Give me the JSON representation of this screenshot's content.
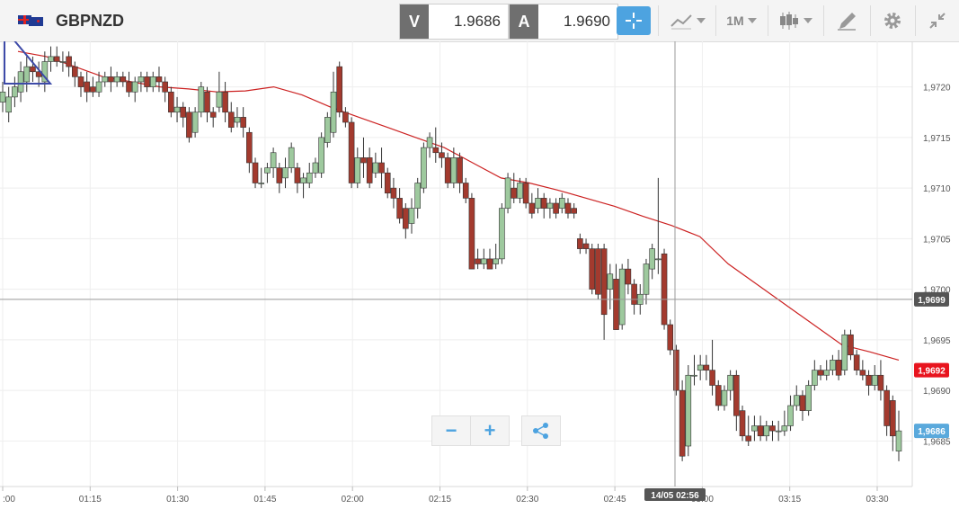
{
  "toolbar": {
    "symbol": "GBPNZD",
    "bid_label": "V",
    "bid_value": "1.9686",
    "ask_label": "A",
    "ask_value": "1.9690",
    "timeframe": "1M",
    "icons": [
      "crosshair-icon",
      "indicator-icon",
      "candlestick-icon",
      "drawing-tool-icon",
      "gear-icon",
      "collapse-icon"
    ]
  },
  "chart_data": {
    "type": "candlestick",
    "y_range": [
      1.96805,
      1.97245
    ],
    "y_ticks": [
      "1,9685",
      "1,9690",
      "1,9695",
      "1,9700",
      "1,9705",
      "1,9710",
      "1,9715",
      "1,9720"
    ],
    "x_ticks": [
      ":00",
      "01:15",
      "01:30",
      "01:45",
      "02:00",
      "02:15",
      "02:30",
      "02:45",
      "03:00",
      "03:15",
      "03:30"
    ],
    "crosshair_price": "1,9699",
    "crosshair_time": "14/05 02:56",
    "current_price": "1,9686",
    "ma_price": "1,9692",
    "colors": {
      "up": "#9ec99e",
      "down": "#a33a2e",
      "ma": "#cc2222",
      "current": "#5aa9dc",
      "ma_label": "#e8141e",
      "crosshair_label": "#555555"
    },
    "candles": [
      [
        1.97185,
        1.97195,
        1.97175,
        1.97205
      ],
      [
        1.97175,
        1.9719,
        1.97165,
        1.972
      ],
      [
        1.9719,
        1.972,
        1.9718,
        1.9721
      ],
      [
        1.97195,
        1.97215,
        1.97185,
        1.97225
      ],
      [
        1.97205,
        1.9722,
        1.97195,
        1.9723
      ],
      [
        1.9722,
        1.97215,
        1.97205,
        1.9723
      ],
      [
        1.97215,
        1.9721,
        1.972,
        1.97225
      ],
      [
        1.97205,
        1.97225,
        1.97195,
        1.97235
      ],
      [
        1.97225,
        1.9723,
        1.97215,
        1.9724
      ],
      [
        1.9723,
        1.97225,
        1.9722,
        1.9724
      ],
      [
        1.97225,
        1.97225,
        1.97215,
        1.97235
      ],
      [
        1.9723,
        1.9722,
        1.9721,
        1.97235
      ],
      [
        1.9722,
        1.9721,
        1.972,
        1.97225
      ],
      [
        1.9721,
        1.972,
        1.9719,
        1.97215
      ],
      [
        1.97205,
        1.97195,
        1.97185,
        1.97215
      ],
      [
        1.972,
        1.97195,
        1.9719,
        1.9721
      ],
      [
        1.97195,
        1.97205,
        1.9719,
        1.97215
      ],
      [
        1.97205,
        1.9721,
        1.972,
        1.97215
      ],
      [
        1.9721,
        1.97205,
        1.97195,
        1.9722
      ],
      [
        1.97205,
        1.9721,
        1.972,
        1.97215
      ],
      [
        1.9721,
        1.97205,
        1.972,
        1.97215
      ],
      [
        1.97205,
        1.97195,
        1.9719,
        1.97215
      ],
      [
        1.97195,
        1.97205,
        1.97185,
        1.9721
      ],
      [
        1.97205,
        1.9721,
        1.97195,
        1.97215
      ],
      [
        1.9721,
        1.972,
        1.97195,
        1.97215
      ],
      [
        1.972,
        1.9721,
        1.97195,
        1.97215
      ],
      [
        1.9721,
        1.97205,
        1.97195,
        1.9722
      ],
      [
        1.97205,
        1.97195,
        1.97185,
        1.9721
      ],
      [
        1.97195,
        1.97175,
        1.9717,
        1.972
      ],
      [
        1.97175,
        1.9718,
        1.97165,
        1.9719
      ],
      [
        1.9718,
        1.9717,
        1.9716,
        1.97185
      ],
      [
        1.97175,
        1.9715,
        1.97145,
        1.9718
      ],
      [
        1.97155,
        1.97175,
        1.9715,
        1.9718
      ],
      [
        1.97175,
        1.972,
        1.9717,
        1.97205
      ],
      [
        1.97195,
        1.97175,
        1.97165,
        1.972
      ],
      [
        1.97175,
        1.9717,
        1.9716,
        1.9718
      ],
      [
        1.9718,
        1.97195,
        1.97175,
        1.97215
      ],
      [
        1.97195,
        1.97175,
        1.97165,
        1.97205
      ],
      [
        1.97175,
        1.9716,
        1.97155,
        1.97185
      ],
      [
        1.97165,
        1.9717,
        1.9716,
        1.9718
      ],
      [
        1.9717,
        1.9716,
        1.9715,
        1.9718
      ],
      [
        1.97155,
        1.97125,
        1.97115,
        1.9716
      ],
      [
        1.97125,
        1.97105,
        1.971,
        1.9713
      ],
      [
        1.97105,
        1.97105,
        1.971,
        1.9712
      ],
      [
        1.97115,
        1.9712,
        1.97105,
        1.97125
      ],
      [
        1.9712,
        1.97135,
        1.9711,
        1.9714
      ],
      [
        1.9712,
        1.97105,
        1.97095,
        1.97125
      ],
      [
        1.9711,
        1.9712,
        1.971,
        1.9713
      ],
      [
        1.9712,
        1.9714,
        1.97115,
        1.97145
      ],
      [
        1.9712,
        1.97105,
        1.97095,
        1.97125
      ],
      [
        1.97105,
        1.9711,
        1.9709,
        1.97115
      ],
      [
        1.97105,
        1.97115,
        1.971,
        1.97125
      ],
      [
        1.97115,
        1.97125,
        1.9711,
        1.9713
      ],
      [
        1.97115,
        1.9715,
        1.9711,
        1.97155
      ],
      [
        1.97145,
        1.9717,
        1.9714,
        1.97175
      ],
      [
        1.97155,
        1.97195,
        1.9715,
        1.97215
      ],
      [
        1.9722,
        1.97175,
        1.9717,
        1.97225
      ],
      [
        1.97175,
        1.97165,
        1.9716,
        1.9718
      ],
      [
        1.97165,
        1.97105,
        1.971,
        1.9717
      ],
      [
        1.97105,
        1.9713,
        1.971,
        1.9714
      ],
      [
        1.9713,
        1.97125,
        1.9711,
        1.9715
      ],
      [
        1.9713,
        1.97105,
        1.971,
        1.9714
      ],
      [
        1.97115,
        1.97125,
        1.9711,
        1.97135
      ],
      [
        1.97125,
        1.97115,
        1.971,
        1.9714
      ],
      [
        1.97115,
        1.97095,
        1.9709,
        1.9712
      ],
      [
        1.971,
        1.9709,
        1.9708,
        1.9711
      ],
      [
        1.9709,
        1.9707,
        1.97065,
        1.971
      ],
      [
        1.9708,
        1.9706,
        1.9705,
        1.97085
      ],
      [
        1.97065,
        1.9708,
        1.97055,
        1.9709
      ],
      [
        1.9708,
        1.97105,
        1.9707,
        1.9711
      ],
      [
        1.971,
        1.9714,
        1.97095,
        1.97145
      ],
      [
        1.9714,
        1.9715,
        1.9713,
        1.97155
      ],
      [
        1.9714,
        1.97135,
        1.97125,
        1.9716
      ],
      [
        1.97135,
        1.9713,
        1.9712,
        1.97145
      ],
      [
        1.9713,
        1.97105,
        1.971,
        1.97135
      ],
      [
        1.97105,
        1.9713,
        1.971,
        1.9714
      ],
      [
        1.9713,
        1.97105,
        1.97095,
        1.97135
      ],
      [
        1.97105,
        1.9709,
        1.97085,
        1.9711
      ],
      [
        1.9709,
        1.9702,
        1.9702,
        1.97095
      ],
      [
        1.9703,
        1.97025,
        1.9702,
        1.9704
      ],
      [
        1.97025,
        1.9703,
        1.9702,
        1.9704
      ],
      [
        1.9703,
        1.9702,
        1.9702,
        1.9704
      ],
      [
        1.97025,
        1.9703,
        1.9702,
        1.97045
      ],
      [
        1.9703,
        1.9708,
        1.97025,
        1.97085
      ],
      [
        1.9708,
        1.9711,
        1.97075,
        1.97115
      ],
      [
        1.971,
        1.9709,
        1.97085,
        1.97115
      ],
      [
        1.9709,
        1.97105,
        1.97085,
        1.9711
      ],
      [
        1.97105,
        1.97085,
        1.9708,
        1.9711
      ],
      [
        1.97085,
        1.97075,
        1.9707,
        1.97095
      ],
      [
        1.9708,
        1.9709,
        1.97075,
        1.971
      ],
      [
        1.9709,
        1.9708,
        1.9707,
        1.97095
      ],
      [
        1.9708,
        1.97085,
        1.9707,
        1.9709
      ],
      [
        1.97085,
        1.97075,
        1.9707,
        1.9709
      ],
      [
        1.9708,
        1.9709,
        1.97075,
        1.97095
      ],
      [
        1.97085,
        1.97075,
        1.9707,
        1.9709
      ],
      [
        1.9708,
        1.97075,
        1.9707,
        1.97085
      ],
      [
        1.9705,
        1.9704,
        1.97035,
        1.97055
      ],
      [
        1.97045,
        1.9704,
        1.97035,
        1.9705
      ],
      [
        1.9704,
        1.97,
        1.96995,
        1.97045
      ],
      [
        1.9704,
        1.96995,
        1.9699,
        1.97045
      ],
      [
        1.9704,
        1.96975,
        1.9695,
        1.97045
      ],
      [
        1.97,
        1.97015,
        1.9698,
        1.97025
      ],
      [
        1.9701,
        1.9696,
        1.9696,
        1.97025
      ],
      [
        1.96965,
        1.9702,
        1.9696,
        1.97025
      ],
      [
        1.9702,
        1.97005,
        1.96995,
        1.9703
      ],
      [
        1.97005,
        1.96985,
        1.96975,
        1.9701
      ],
      [
        1.96985,
        1.96995,
        1.96975,
        1.97005
      ],
      [
        1.96995,
        1.97025,
        1.96985,
        1.9703
      ],
      [
        1.9702,
        1.9704,
        1.9701,
        1.97045
      ],
      [
        1.9703,
        1.9703,
        1.97015,
        1.9711
      ],
      [
        1.97035,
        1.96965,
        1.9696,
        1.9704
      ],
      [
        1.96965,
        1.9694,
        1.96935,
        1.9697
      ],
      [
        1.9694,
        1.969,
        1.96895,
        1.96945
      ],
      [
        1.969,
        1.96835,
        1.9683,
        1.9691
      ],
      [
        1.96845,
        1.96915,
        1.96835,
        1.96925
      ],
      [
        1.96915,
        1.96915,
        1.96905,
        1.96935
      ],
      [
        1.9692,
        1.96925,
        1.9691,
        1.96935
      ],
      [
        1.96925,
        1.9692,
        1.9691,
        1.96935
      ],
      [
        1.9692,
        1.96905,
        1.96895,
        1.9695
      ],
      [
        1.96905,
        1.96885,
        1.9688,
        1.9691
      ],
      [
        1.96885,
        1.969,
        1.9688,
        1.96905
      ],
      [
        1.969,
        1.96915,
        1.9689,
        1.9692
      ],
      [
        1.96915,
        1.96875,
        1.9686,
        1.9692
      ],
      [
        1.9688,
        1.96855,
        1.9685,
        1.96885
      ],
      [
        1.96855,
        1.9685,
        1.96845,
        1.96875
      ],
      [
        1.9686,
        1.96865,
        1.9685,
        1.96875
      ],
      [
        1.96865,
        1.96855,
        1.9685,
        1.96875
      ],
      [
        1.96855,
        1.96865,
        1.9685,
        1.9687
      ],
      [
        1.96865,
        1.9686,
        1.9685,
        1.9687
      ],
      [
        1.9686,
        1.9686,
        1.9685,
        1.9687
      ],
      [
        1.9686,
        1.96865,
        1.96855,
        1.9688
      ],
      [
        1.96865,
        1.96885,
        1.9686,
        1.96895
      ],
      [
        1.96885,
        1.96895,
        1.9688,
        1.96905
      ],
      [
        1.96895,
        1.9688,
        1.9687,
        1.969
      ],
      [
        1.9688,
        1.96905,
        1.96875,
        1.9691
      ],
      [
        1.96905,
        1.9692,
        1.969,
        1.9693
      ],
      [
        1.9692,
        1.96915,
        1.9691,
        1.96925
      ],
      [
        1.96915,
        1.9692,
        1.9691,
        1.9693
      ],
      [
        1.9692,
        1.9693,
        1.96915,
        1.96935
      ],
      [
        1.9693,
        1.96915,
        1.9691,
        1.9694
      ],
      [
        1.9692,
        1.96955,
        1.96915,
        1.9696
      ],
      [
        1.96955,
        1.96935,
        1.9693,
        1.9696
      ],
      [
        1.96935,
        1.9692,
        1.96915,
        1.9694
      ],
      [
        1.9692,
        1.96915,
        1.9691,
        1.9693
      ],
      [
        1.96915,
        1.96905,
        1.96895,
        1.9692
      ],
      [
        1.96905,
        1.96915,
        1.969,
        1.96925
      ],
      [
        1.96915,
        1.969,
        1.9689,
        1.9693
      ],
      [
        1.969,
        1.96865,
        1.96855,
        1.96905
      ],
      [
        1.9689,
        1.96855,
        1.9684,
        1.96895
      ],
      [
        1.9684,
        1.9686,
        1.9683,
        1.9688
      ]
    ],
    "ma": [
      1.97235,
      1.9723,
      1.9722,
      1.9721,
      1.97205,
      1.972,
      1.97198,
      1.97195,
      1.97196,
      1.972,
      1.97192,
      1.9718,
      1.9717,
      1.9716,
      1.9715,
      1.9714,
      1.97125,
      1.9711,
      1.97105,
      1.97098,
      1.9709,
      1.97082,
      1.97072,
      1.97063,
      1.97052,
      1.97025,
      1.97005,
      1.96985,
      1.96965,
      1.96945,
      1.96938,
      1.9693
    ]
  }
}
